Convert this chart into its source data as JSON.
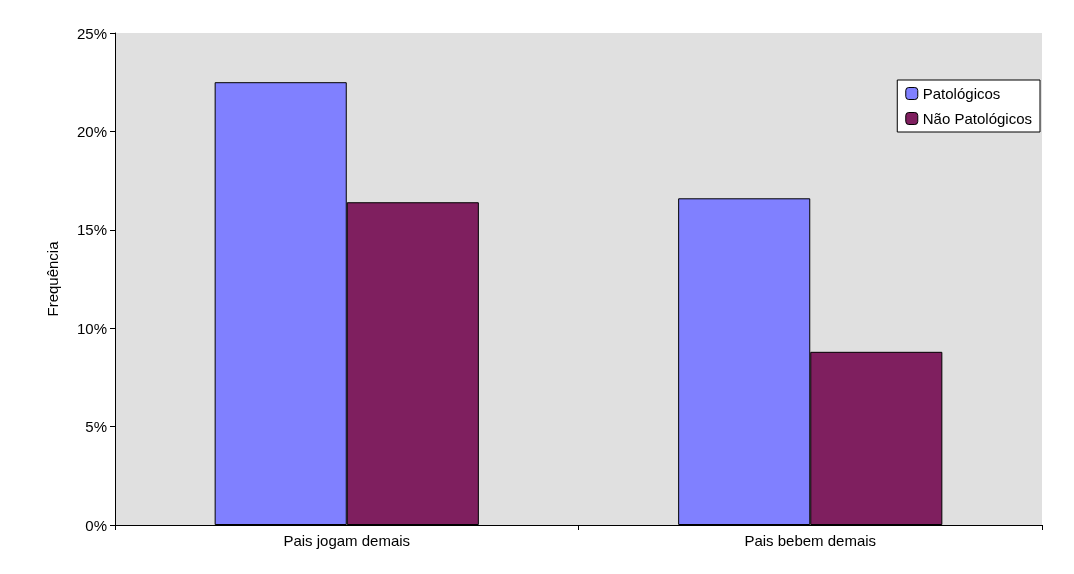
{
  "chart_data": {
    "type": "bar",
    "ylabel": "Frequência",
    "categories": [
      "Pais jogam demais",
      "Pais bebem demais"
    ],
    "series": [
      {
        "name": "Patológicos",
        "color": "#8080ff",
        "values": [
          22.5,
          16.6
        ]
      },
      {
        "name": "Não Patológicos",
        "color": "#7f1f5f",
        "values": [
          16.4,
          8.8
        ]
      }
    ],
    "ylim": [
      0,
      25
    ],
    "yticks": [
      {
        "value": 0,
        "label": "0%"
      },
      {
        "value": 5,
        "label": "5%"
      },
      {
        "value": 10,
        "label": "10%"
      },
      {
        "value": 15,
        "label": "15%"
      },
      {
        "value": 20,
        "label": "20%"
      },
      {
        "value": 25,
        "label": "25%"
      }
    ],
    "legend": "top right"
  }
}
